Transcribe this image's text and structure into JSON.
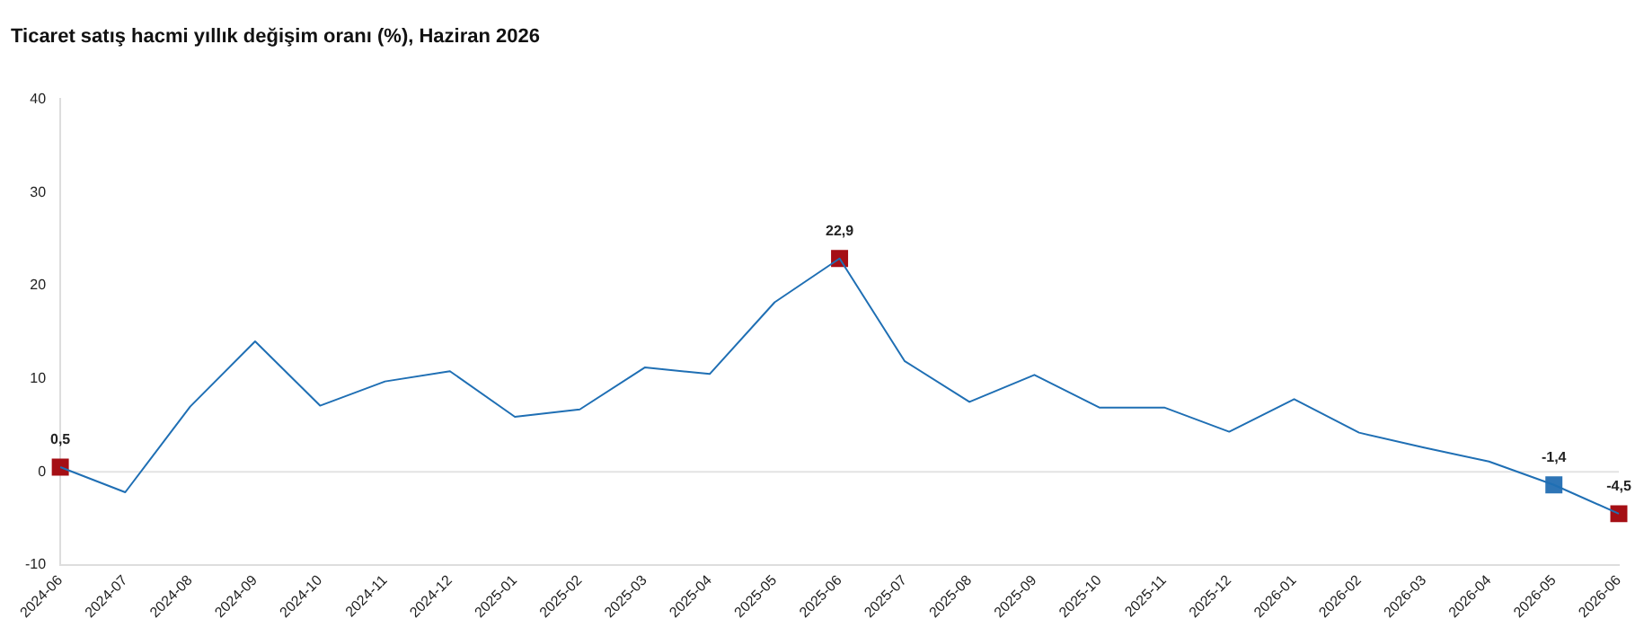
{
  "chart_data": {
    "type": "line",
    "title": "Ticaret satış hacmi yıllık değişim oranı (%), Haziran 2026",
    "categories": [
      "2024-06",
      "2024-07",
      "2024-08",
      "2024-09",
      "2024-10",
      "2024-11",
      "2024-12",
      "2025-01",
      "2025-02",
      "2025-03",
      "2025-04",
      "2025-05",
      "2025-06",
      "2025-07",
      "2025-08",
      "2025-09",
      "2025-10",
      "2025-11",
      "2025-12",
      "2026-01",
      "2026-02",
      "2026-03",
      "2026-04",
      "2026-05",
      "2026-06"
    ],
    "series": [
      {
        "color": "#1f6fb4",
        "marker": "none",
        "values": [
          0.5,
          -2.2,
          7.0,
          14.0,
          7.1,
          9.7,
          10.8,
          5.9,
          6.7,
          11.2,
          10.5,
          18.2,
          22.9,
          11.9,
          7.5,
          10.4,
          6.9,
          6.9,
          4.3,
          7.8,
          4.2,
          2.6,
          1.1,
          -1.4,
          -4.5
        ]
      },
      {
        "type": "scatter",
        "marker": "square",
        "values": [
          0.5,
          null,
          null,
          null,
          null,
          null,
          null,
          null,
          null,
          null,
          null,
          null,
          22.9,
          null,
          null,
          null,
          null,
          null,
          null,
          null,
          null,
          null,
          null,
          -1.4,
          -4.5
        ],
        "colors": [
          "#a50f15",
          null,
          null,
          null,
          null,
          null,
          null,
          null,
          null,
          null,
          null,
          null,
          "#a50f15",
          null,
          null,
          null,
          null,
          null,
          null,
          null,
          null,
          null,
          null,
          "#2e75b6",
          "#a50f15"
        ],
        "value_labels": [
          "0,5",
          null,
          null,
          null,
          null,
          null,
          null,
          null,
          null,
          null,
          null,
          null,
          "22,9",
          null,
          null,
          null,
          null,
          null,
          null,
          null,
          null,
          null,
          null,
          "-1,4",
          "-4,5"
        ]
      }
    ],
    "ylim": [
      -10,
      40
    ],
    "yticks": [
      -10,
      0,
      10,
      20,
      30,
      40
    ],
    "grid": false,
    "legend": false,
    "ref_lines": [
      {
        "axis": "y",
        "value": 0,
        "color": "#e3e3e3"
      }
    ]
  }
}
